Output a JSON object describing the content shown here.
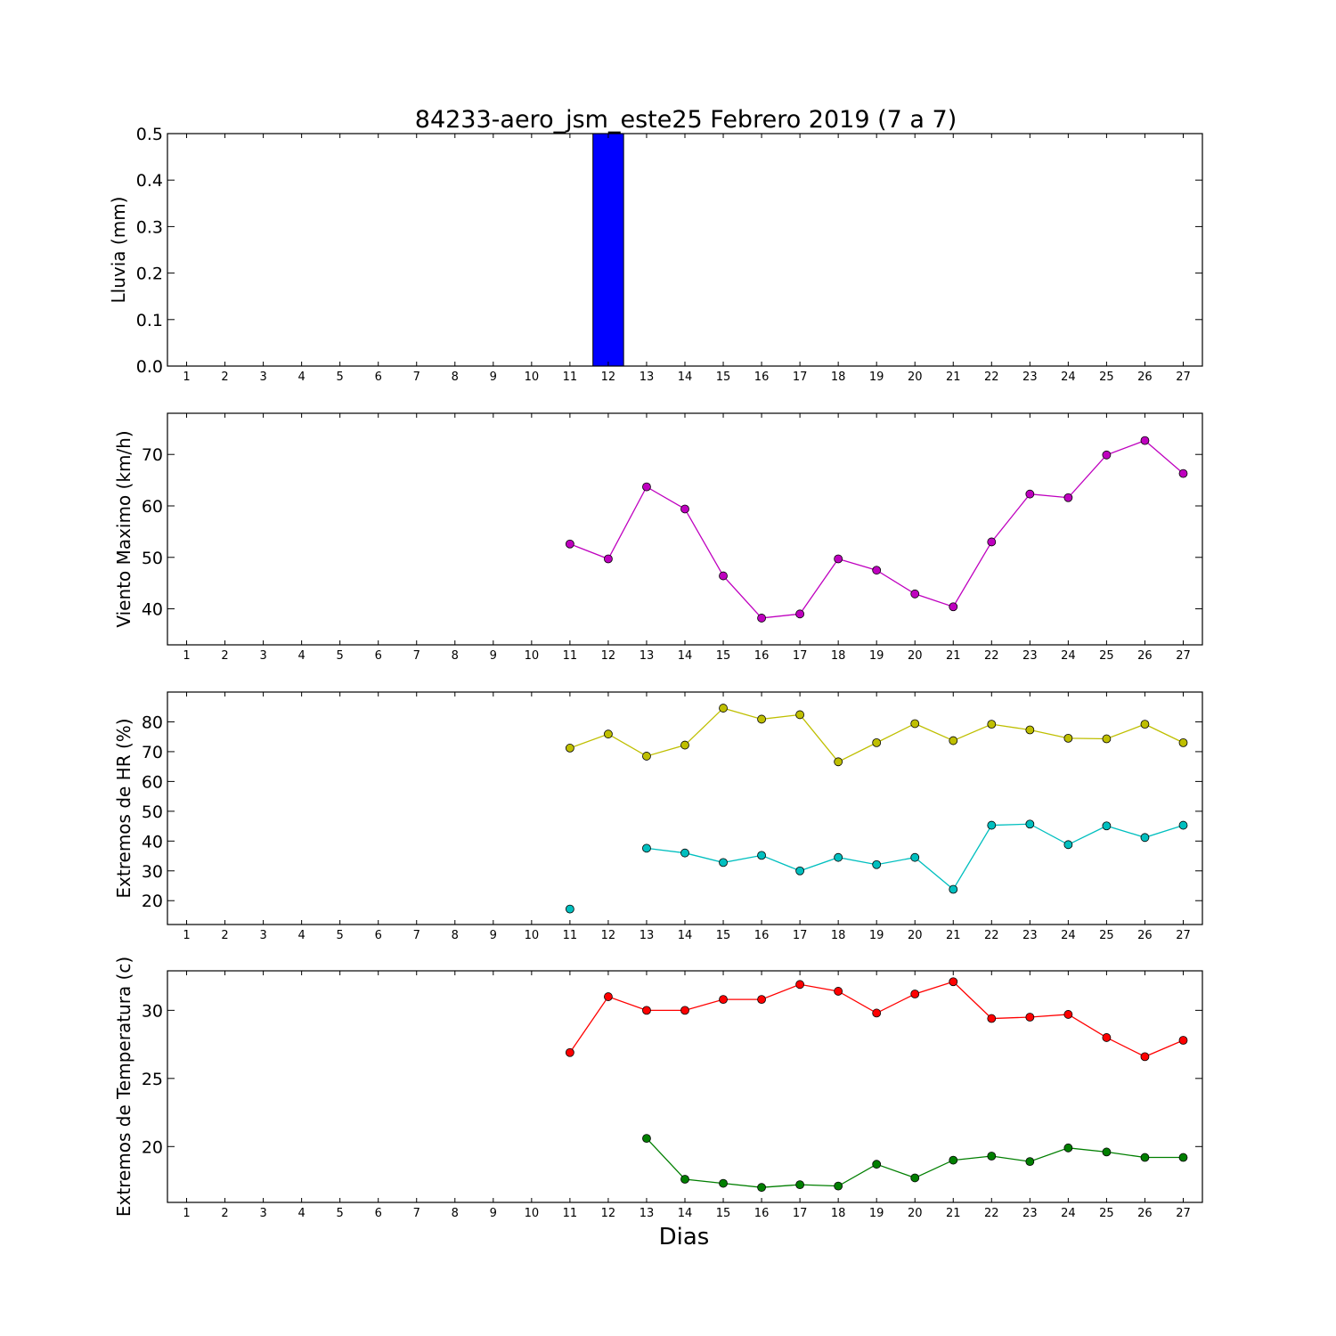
{
  "title": "84233-aero_jsm_este25 Febrero 2019  (7 a 7)",
  "xlabel": "Dias",
  "colors": {
    "rain_bar": "#0000ff",
    "wind": "#bf00bf",
    "hr_max": "#bfbf00",
    "hr_min": "#00bfbf",
    "temp_max": "#ff0000",
    "temp_min": "#007f00"
  },
  "chart_data": [
    {
      "type": "bar",
      "ylabel": "Lluvia (mm)",
      "x": [
        1,
        2,
        3,
        4,
        5,
        6,
        7,
        8,
        9,
        10,
        11,
        12,
        13,
        14,
        15,
        16,
        17,
        18,
        19,
        20,
        21,
        22,
        23,
        24,
        25,
        26,
        27
      ],
      "xlim": [
        0.5,
        27.5
      ],
      "ylim": [
        0,
        0.5
      ],
      "yticks": [
        0.0,
        0.1,
        0.2,
        0.3,
        0.4,
        0.5
      ],
      "ytick_labels": [
        "0.0",
        "0.1",
        "0.2",
        "0.3",
        "0.4",
        "0.5"
      ],
      "series": [
        {
          "values": [
            null,
            null,
            null,
            null,
            null,
            null,
            null,
            null,
            null,
            null,
            0,
            0.5,
            0,
            0,
            0,
            0,
            0,
            0,
            0,
            0,
            0,
            0,
            0,
            0,
            0,
            0,
            0
          ],
          "color": "#0000ff"
        }
      ]
    },
    {
      "type": "line",
      "ylabel": "Viento Maximo (km/h)",
      "x": [
        1,
        2,
        3,
        4,
        5,
        6,
        7,
        8,
        9,
        10,
        11,
        12,
        13,
        14,
        15,
        16,
        17,
        18,
        19,
        20,
        21,
        22,
        23,
        24,
        25,
        26,
        27
      ],
      "xlim": [
        0.5,
        27.5
      ],
      "ylim": [
        33,
        78
      ],
      "yticks": [
        40,
        50,
        60,
        70
      ],
      "ytick_labels": [
        "40",
        "50",
        "60",
        "70"
      ],
      "series": [
        {
          "values": [
            null,
            null,
            null,
            null,
            null,
            null,
            null,
            null,
            null,
            null,
            52.6,
            49.7,
            63.7,
            59.4,
            46.4,
            38.2,
            39,
            49.7,
            47.5,
            42.9,
            40.4,
            53,
            62.3,
            61.6,
            69.9,
            72.7,
            66.3
          ],
          "color": "#bf00bf"
        }
      ]
    },
    {
      "type": "line",
      "ylabel": "Extremos de HR (%)",
      "x": [
        1,
        2,
        3,
        4,
        5,
        6,
        7,
        8,
        9,
        10,
        11,
        12,
        13,
        14,
        15,
        16,
        17,
        18,
        19,
        20,
        21,
        22,
        23,
        24,
        25,
        26,
        27
      ],
      "xlim": [
        0.5,
        27.5
      ],
      "ylim": [
        12,
        90
      ],
      "yticks": [
        20,
        30,
        40,
        50,
        60,
        70,
        80
      ],
      "ytick_labels": [
        "20",
        "30",
        "40",
        "50",
        "60",
        "70",
        "80"
      ],
      "series": [
        {
          "values": [
            null,
            null,
            null,
            null,
            null,
            null,
            null,
            null,
            null,
            null,
            71.2,
            75.9,
            68.5,
            72.2,
            84.6,
            80.9,
            82.4,
            66.6,
            73,
            79.4,
            73.7,
            79.2,
            77.3,
            74.5,
            74.3,
            79.2,
            73
          ],
          "color": "#bfbf00"
        },
        {
          "values": [
            null,
            null,
            null,
            null,
            null,
            null,
            null,
            null,
            null,
            null,
            17.2,
            null,
            37.6,
            36,
            32.8,
            35.2,
            30,
            34.5,
            32.1,
            34.5,
            23.8,
            45.3,
            45.7,
            38.8,
            45.1,
            41.2,
            45.3
          ],
          "color": "#00bfbf"
        }
      ]
    },
    {
      "type": "line",
      "ylabel": "Extremos de Temperatura (c)",
      "x": [
        1,
        2,
        3,
        4,
        5,
        6,
        7,
        8,
        9,
        10,
        11,
        12,
        13,
        14,
        15,
        16,
        17,
        18,
        19,
        20,
        21,
        22,
        23,
        24,
        25,
        26,
        27
      ],
      "xlim": [
        0.5,
        27.5
      ],
      "ylim": [
        15.9,
        32.9
      ],
      "yticks": [
        20,
        25,
        30
      ],
      "ytick_labels": [
        "20",
        "25",
        "30"
      ],
      "series": [
        {
          "values": [
            null,
            null,
            null,
            null,
            null,
            null,
            null,
            null,
            null,
            null,
            26.9,
            31,
            30,
            30,
            30.8,
            30.8,
            31.9,
            31.4,
            29.8,
            31.2,
            32.1,
            29.4,
            29.5,
            29.7,
            28,
            26.6,
            27.8
          ],
          "color": "#ff0000"
        },
        {
          "values": [
            null,
            null,
            null,
            null,
            null,
            null,
            null,
            null,
            null,
            null,
            null,
            null,
            20.6,
            17.6,
            17.3,
            17,
            17.2,
            17.1,
            18.7,
            17.7,
            19,
            19.3,
            18.9,
            19.9,
            19.6,
            19.2,
            19.2
          ],
          "color": "#007f00"
        }
      ]
    }
  ]
}
